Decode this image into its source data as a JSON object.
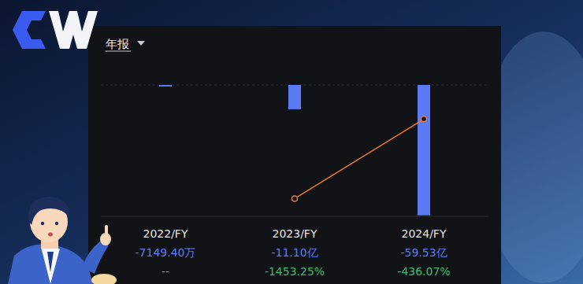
{
  "header": {
    "dropdown": "年报"
  },
  "chart_data": {
    "type": "bar",
    "categories": [
      "2022/FY",
      "2023/FY",
      "2024/FY"
    ],
    "series": [
      {
        "type": "bar",
        "color": "#5b7bf5",
        "values": [
          -0.71494,
          -11.1,
          -59.53
        ],
        "value_labels": [
          "-7149.40万",
          "-11.10亿",
          "-59.53亿"
        ]
      },
      {
        "type": "line",
        "axis": "y2",
        "color": "#e8793a",
        "marker": "circle",
        "values": [
          null,
          -1453.25,
          -436.07
        ],
        "value_labels": [
          "--",
          "-1453.25%",
          "-436.07%"
        ]
      }
    ],
    "ylim": [
      -60,
      0
    ],
    "y2lim": [
      -1680,
      0
    ],
    "data_labels": true,
    "tick_labels": "x",
    "grid": false
  }
}
